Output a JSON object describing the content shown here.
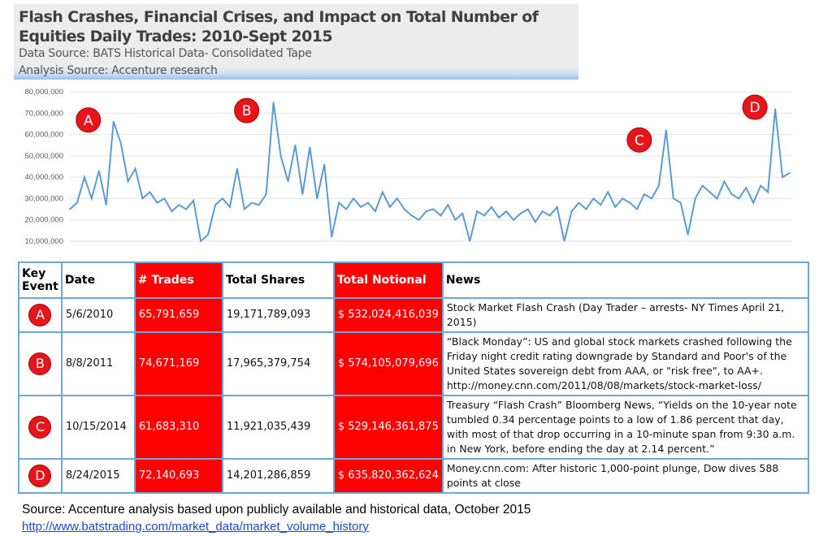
{
  "header": {
    "title": "Flash Crashes, Financial Crises, and Impact on Total Number of Equities Daily Trades: 2010-Sept 2015",
    "data_source": "Data Source: BATS Historical Data- Consolidated Tape",
    "analysis_source": "Analysis Source: Accenture research"
  },
  "chart_data": {
    "type": "line",
    "title": "",
    "xlabel": "",
    "ylabel": "",
    "ylim": [
      10000000,
      80000000
    ],
    "yticks": [
      "80,000,000",
      "70,000,000",
      "60,000,000",
      "50,000,000",
      "40,000,000",
      "30,000,000",
      "20,000,000",
      "10,000,000"
    ],
    "grid": true,
    "line_color": "#5b9bd5",
    "marker_color": "#e8141b",
    "values": [
      25000000,
      28000000,
      40000000,
      30000000,
      43000000,
      27000000,
      66000000,
      56000000,
      38000000,
      44000000,
      30000000,
      33000000,
      28000000,
      30000000,
      24000000,
      27000000,
      25000000,
      29000000,
      10000000,
      13000000,
      27000000,
      30000000,
      26000000,
      44000000,
      25000000,
      28000000,
      27000000,
      32000000,
      75000000,
      50000000,
      38000000,
      55000000,
      32000000,
      54000000,
      30000000,
      46000000,
      12000000,
      28000000,
      25000000,
      30000000,
      26000000,
      28000000,
      24000000,
      33000000,
      26000000,
      30000000,
      25000000,
      22000000,
      20000000,
      24000000,
      25000000,
      22000000,
      27000000,
      20000000,
      23000000,
      10000000,
      24000000,
      22000000,
      26000000,
      21000000,
      24000000,
      20000000,
      23000000,
      25000000,
      19000000,
      24000000,
      22000000,
      26000000,
      10000000,
      24000000,
      28000000,
      25000000,
      30000000,
      27000000,
      33000000,
      26000000,
      30000000,
      28000000,
      25000000,
      32000000,
      30000000,
      36000000,
      62000000,
      30000000,
      28000000,
      13000000,
      30000000,
      36000000,
      33000000,
      30000000,
      38000000,
      32000000,
      30000000,
      35000000,
      28000000,
      36000000,
      33000000,
      72000000,
      40000000,
      42000000
    ],
    "annotations": [
      {
        "label": "A",
        "index": 6
      },
      {
        "label": "B",
        "index": 28
      },
      {
        "label": "C",
        "index": 82
      },
      {
        "label": "D",
        "index": 97
      }
    ]
  },
  "table": {
    "headers": [
      "Key Event",
      "Date",
      "# Trades",
      "Total Shares",
      "Total Notional",
      "News"
    ],
    "rows": [
      {
        "key": "A",
        "date": "5/6/2010",
        "trades": "65,791,659",
        "shares": "19,171,789,093",
        "currency": "$",
        "notional": "532,024,416,039",
        "news": "Stock Market Flash Crash (Day Trader – arrests- NY Times April 21, 2015)"
      },
      {
        "key": "B",
        "date": "8/8/2011",
        "trades": "74,671,169",
        "shares": "17,965,379,754",
        "currency": "$",
        "notional": "574,105,079,696",
        "news": "“Black Monday”: US and global stock markets crashed following the Friday night credit rating downgrade by Standard and Poor's of the United States sovereign debt from AAA, or \"risk free\", to AA+. http://money.cnn.com/2011/08/08/markets/stock-market-loss/"
      },
      {
        "key": "C",
        "date": "10/15/2014",
        "trades": "61,683,310",
        "shares": "11,921,035,439",
        "currency": "$",
        "notional": "529,146,361,875",
        "news": "Treasury “Flash Crash” Bloomberg News, “Yields on the 10-year note tumbled 0.34 percentage points to a low of 1.86 percent that day, with most of that drop occurring in a 10-minute span from 9:30 a.m. in New York, before ending the day at 2.14 percent.”"
      },
      {
        "key": "D",
        "date": "8/24/2015",
        "trades": "72,140,693",
        "shares": "14,201,286,859",
        "currency": "$",
        "notional": "635,820,362,624",
        "news": "Money.cnn.com: After historic 1,000-point plunge, Dow dives 588 points at close"
      }
    ]
  },
  "footer": {
    "source": "Source: Accenture analysis based upon publicly available and historical data, October 2015",
    "link": "http://www.batstrading.com/market_data/market_volume_history"
  }
}
